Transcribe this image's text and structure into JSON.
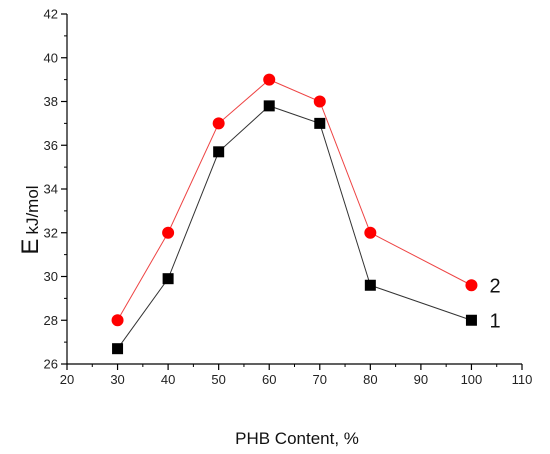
{
  "chart_data": {
    "type": "line",
    "xlabel": "PHB Content, %",
    "ylabel_main": "E",
    "ylabel_sub": "kJ/mol",
    "xlim": [
      20,
      110
    ],
    "ylim": [
      26,
      42
    ],
    "xticks": [
      20,
      30,
      40,
      50,
      60,
      70,
      80,
      90,
      100,
      110
    ],
    "yticks": [
      26,
      28,
      30,
      32,
      34,
      36,
      38,
      40,
      42
    ],
    "grid": false,
    "series": [
      {
        "name": "1",
        "marker": "square",
        "color": "#000000",
        "line_color": "#333333",
        "x": [
          30,
          40,
          50,
          60,
          70,
          80,
          100
        ],
        "y": [
          26.7,
          29.9,
          35.7,
          37.8,
          37.0,
          29.6,
          28.0
        ]
      },
      {
        "name": "2",
        "marker": "circle",
        "color": "#ff0000",
        "line_color": "#ee4444",
        "x": [
          30,
          40,
          50,
          60,
          70,
          80,
          100
        ],
        "y": [
          28.0,
          32.0,
          37.0,
          39.0,
          38.0,
          32.0,
          29.6
        ]
      }
    ]
  }
}
